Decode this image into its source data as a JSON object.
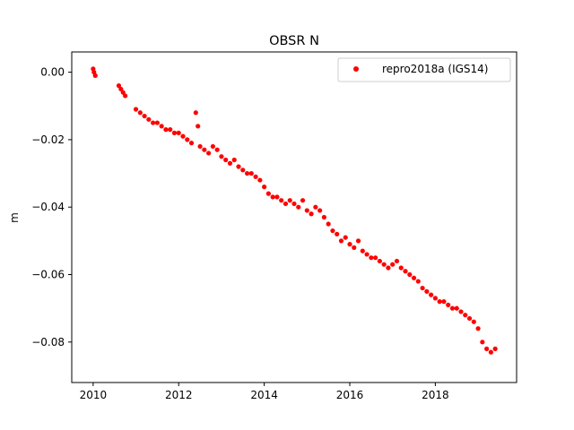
{
  "chart_data": {
    "type": "scatter",
    "title": "OBSR N",
    "xlabel": "",
    "ylabel": "m",
    "xlim": [
      2009.5,
      2019.9
    ],
    "ylim": [
      -0.092,
      0.006
    ],
    "x_ticks": [
      2010,
      2012,
      2014,
      2016,
      2018
    ],
    "x_tick_labels": [
      "2010",
      "2012",
      "2014",
      "2016",
      "2018"
    ],
    "y_ticks": [
      0.0,
      -0.02,
      -0.04,
      -0.06,
      -0.08
    ],
    "y_tick_labels": [
      "0.00",
      "−0.02",
      "−0.04",
      "−0.06",
      "−0.08"
    ],
    "grid": false,
    "legend_position": "top-right",
    "marker_color": "#ff0000",
    "series": [
      {
        "name": "repro2018a (IGS14)",
        "x": [
          2010.0,
          2010.02,
          2010.05,
          2010.6,
          2010.65,
          2010.7,
          2010.75,
          2011.0,
          2011.1,
          2011.2,
          2011.3,
          2011.4,
          2011.5,
          2011.6,
          2011.7,
          2011.8,
          2011.9,
          2012.0,
          2012.1,
          2012.2,
          2012.3,
          2012.4,
          2012.45,
          2012.5,
          2012.6,
          2012.7,
          2012.8,
          2012.9,
          2013.0,
          2013.1,
          2013.2,
          2013.3,
          2013.4,
          2013.5,
          2013.6,
          2013.7,
          2013.8,
          2013.9,
          2014.0,
          2014.1,
          2014.2,
          2014.3,
          2014.4,
          2014.5,
          2014.6,
          2014.7,
          2014.8,
          2014.9,
          2015.0,
          2015.1,
          2015.2,
          2015.3,
          2015.4,
          2015.5,
          2015.6,
          2015.7,
          2015.8,
          2015.9,
          2016.0,
          2016.1,
          2016.2,
          2016.3,
          2016.4,
          2016.5,
          2016.6,
          2016.7,
          2016.8,
          2016.9,
          2017.0,
          2017.1,
          2017.2,
          2017.3,
          2017.4,
          2017.5,
          2017.6,
          2017.7,
          2017.8,
          2017.9,
          2018.0,
          2018.1,
          2018.2,
          2018.3,
          2018.4,
          2018.5,
          2018.6,
          2018.7,
          2018.8,
          2018.9,
          2019.0,
          2019.1,
          2019.2,
          2019.3,
          2019.4
        ],
        "y": [
          0.001,
          0.0,
          -0.001,
          -0.004,
          -0.005,
          -0.006,
          -0.007,
          -0.011,
          -0.012,
          -0.013,
          -0.014,
          -0.015,
          -0.015,
          -0.016,
          -0.017,
          -0.017,
          -0.018,
          -0.018,
          -0.019,
          -0.02,
          -0.021,
          -0.012,
          -0.016,
          -0.022,
          -0.023,
          -0.024,
          -0.022,
          -0.023,
          -0.025,
          -0.026,
          -0.027,
          -0.026,
          -0.028,
          -0.029,
          -0.03,
          -0.03,
          -0.031,
          -0.032,
          -0.034,
          -0.036,
          -0.037,
          -0.037,
          -0.038,
          -0.039,
          -0.038,
          -0.039,
          -0.04,
          -0.038,
          -0.041,
          -0.042,
          -0.04,
          -0.041,
          -0.043,
          -0.045,
          -0.047,
          -0.048,
          -0.05,
          -0.049,
          -0.051,
          -0.052,
          -0.05,
          -0.053,
          -0.054,
          -0.055,
          -0.055,
          -0.056,
          -0.057,
          -0.058,
          -0.057,
          -0.056,
          -0.058,
          -0.059,
          -0.06,
          -0.061,
          -0.062,
          -0.064,
          -0.065,
          -0.066,
          -0.067,
          -0.068,
          -0.068,
          -0.069,
          -0.07,
          -0.07,
          -0.071,
          -0.072,
          -0.073,
          -0.074,
          -0.076,
          -0.08,
          -0.082,
          -0.083,
          -0.082
        ]
      }
    ]
  }
}
